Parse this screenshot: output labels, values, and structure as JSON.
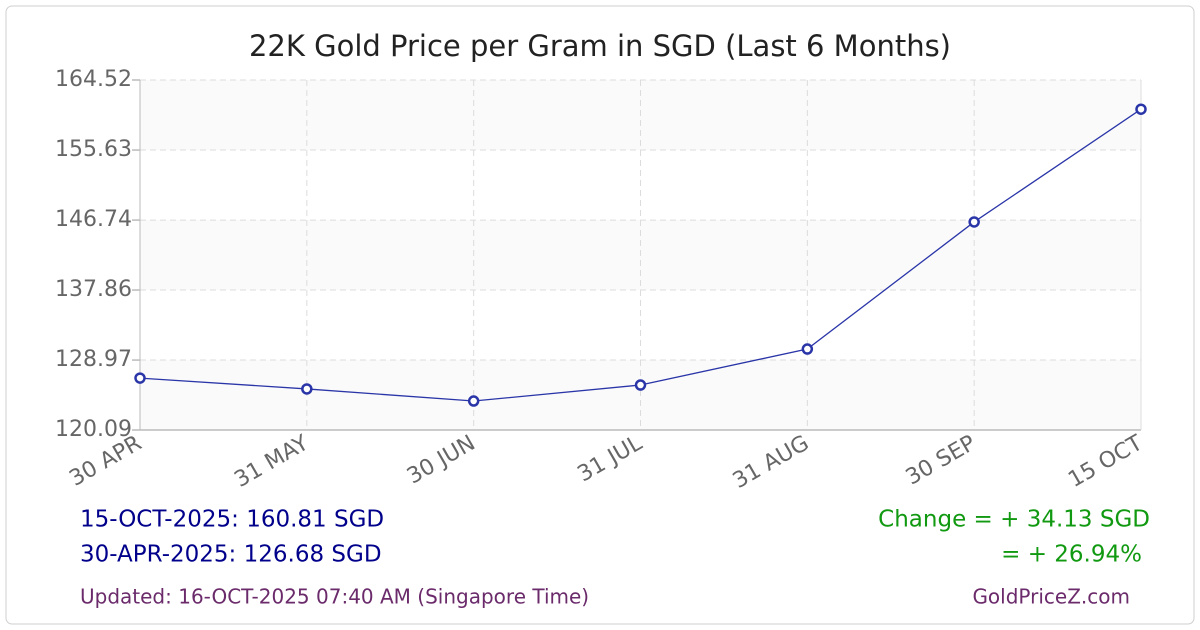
{
  "chart_data": {
    "type": "line",
    "title": "22K Gold Price per Gram in SGD (Last 6 Months)",
    "categories": [
      "30 APR",
      "31 MAY",
      "30 JUN",
      "31 JUL",
      "31 AUG",
      "30 SEP",
      "15 OCT"
    ],
    "values": [
      126.68,
      125.3,
      123.77,
      125.8,
      130.37,
      146.5,
      160.81
    ],
    "color": "#2a35a8",
    "ylim": [
      120.09,
      164.52
    ],
    "yticks": [
      120.09,
      128.97,
      137.86,
      146.74,
      155.63,
      164.52
    ],
    "grid": true,
    "annotations": {
      "latest": "15-OCT-2025: 160.81 SGD",
      "earliest": "30-APR-2025: 126.68 SGD",
      "change": "Change = + 34.13 SGD",
      "change_pct": "= + 26.94%",
      "updated": "Updated: 16-OCT-2025 07:40 AM (Singapore Time)",
      "source": "GoldPriceZ.com"
    }
  }
}
